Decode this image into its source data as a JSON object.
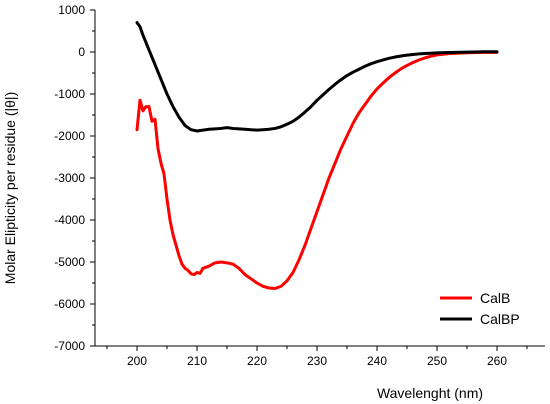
{
  "chart_data": {
    "type": "line",
    "title": "",
    "xlabel": "Wavelenght (nm)",
    "ylabel": "Molar Elipticity per residue (|θ|)",
    "xlim": [
      193,
      268
    ],
    "ylim": [
      -7000,
      1000
    ],
    "xticks": [
      200,
      210,
      220,
      230,
      240,
      250,
      260
    ],
    "yticks": [
      1000,
      0,
      -1000,
      -2000,
      -3000,
      -4000,
      -5000,
      -6000,
      -7000
    ],
    "grid": false,
    "legend_position": "bottom-right",
    "series": [
      {
        "name": "CalB",
        "color": "#ff0000",
        "points": [
          [
            200,
            -1850
          ],
          [
            200.5,
            -1150
          ],
          [
            201,
            -1400
          ],
          [
            201.5,
            -1300
          ],
          [
            202,
            -1300
          ],
          [
            202.5,
            -1650
          ],
          [
            203,
            -1600
          ],
          [
            203.5,
            -2300
          ],
          [
            204,
            -2650
          ],
          [
            204.5,
            -2900
          ],
          [
            205,
            -3500
          ],
          [
            205.5,
            -4000
          ],
          [
            206,
            -4350
          ],
          [
            206.5,
            -4600
          ],
          [
            207,
            -4850
          ],
          [
            207.5,
            -5050
          ],
          [
            208,
            -5150
          ],
          [
            208.5,
            -5200
          ],
          [
            209,
            -5280
          ],
          [
            209.5,
            -5300
          ],
          [
            210,
            -5250
          ],
          [
            210.5,
            -5270
          ],
          [
            211,
            -5150
          ],
          [
            212,
            -5100
          ],
          [
            213,
            -5020
          ],
          [
            214,
            -5000
          ],
          [
            215,
            -5020
          ],
          [
            216,
            -5050
          ],
          [
            217,
            -5150
          ],
          [
            218,
            -5300
          ],
          [
            219,
            -5400
          ],
          [
            220,
            -5500
          ],
          [
            221,
            -5580
          ],
          [
            222,
            -5620
          ],
          [
            223,
            -5630
          ],
          [
            224,
            -5580
          ],
          [
            225,
            -5450
          ],
          [
            226,
            -5250
          ],
          [
            227,
            -4950
          ],
          [
            228,
            -4600
          ],
          [
            229,
            -4200
          ],
          [
            230,
            -3800
          ],
          [
            231,
            -3400
          ],
          [
            232,
            -3000
          ],
          [
            233,
            -2650
          ],
          [
            234,
            -2300
          ],
          [
            235,
            -2000
          ],
          [
            236,
            -1700
          ],
          [
            237,
            -1450
          ],
          [
            238,
            -1250
          ],
          [
            239,
            -1050
          ],
          [
            240,
            -880
          ],
          [
            241,
            -740
          ],
          [
            242,
            -610
          ],
          [
            243,
            -500
          ],
          [
            244,
            -400
          ],
          [
            245,
            -320
          ],
          [
            246,
            -250
          ],
          [
            247,
            -190
          ],
          [
            248,
            -140
          ],
          [
            249,
            -100
          ],
          [
            250,
            -70
          ],
          [
            252,
            -40
          ],
          [
            254,
            -25
          ],
          [
            256,
            -15
          ],
          [
            258,
            -10
          ],
          [
            260,
            -10
          ]
        ]
      },
      {
        "name": "CalBP",
        "color": "#000000",
        "points": [
          [
            200,
            700
          ],
          [
            200.5,
            600
          ],
          [
            201,
            400
          ],
          [
            202,
            50
          ],
          [
            203,
            -300
          ],
          [
            204,
            -650
          ],
          [
            205,
            -1000
          ],
          [
            206,
            -1300
          ],
          [
            207,
            -1550
          ],
          [
            208,
            -1750
          ],
          [
            209,
            -1850
          ],
          [
            210,
            -1880
          ],
          [
            211,
            -1860
          ],
          [
            212,
            -1840
          ],
          [
            213,
            -1830
          ],
          [
            214,
            -1820
          ],
          [
            215,
            -1800
          ],
          [
            216,
            -1820
          ],
          [
            217,
            -1830
          ],
          [
            218,
            -1840
          ],
          [
            219,
            -1850
          ],
          [
            220,
            -1860
          ],
          [
            221,
            -1850
          ],
          [
            222,
            -1840
          ],
          [
            223,
            -1820
          ],
          [
            224,
            -1780
          ],
          [
            225,
            -1720
          ],
          [
            226,
            -1650
          ],
          [
            227,
            -1550
          ],
          [
            228,
            -1430
          ],
          [
            229,
            -1300
          ],
          [
            230,
            -1150
          ],
          [
            231,
            -1020
          ],
          [
            232,
            -890
          ],
          [
            233,
            -770
          ],
          [
            234,
            -660
          ],
          [
            235,
            -560
          ],
          [
            236,
            -480
          ],
          [
            237,
            -410
          ],
          [
            238,
            -340
          ],
          [
            239,
            -280
          ],
          [
            240,
            -230
          ],
          [
            241,
            -190
          ],
          [
            242,
            -150
          ],
          [
            243,
            -120
          ],
          [
            244,
            -95
          ],
          [
            245,
            -75
          ],
          [
            246,
            -60
          ],
          [
            247,
            -45
          ],
          [
            248,
            -35
          ],
          [
            250,
            -20
          ],
          [
            252,
            -12
          ],
          [
            254,
            -5
          ],
          [
            256,
            0
          ],
          [
            258,
            5
          ],
          [
            260,
            5
          ]
        ]
      }
    ]
  }
}
